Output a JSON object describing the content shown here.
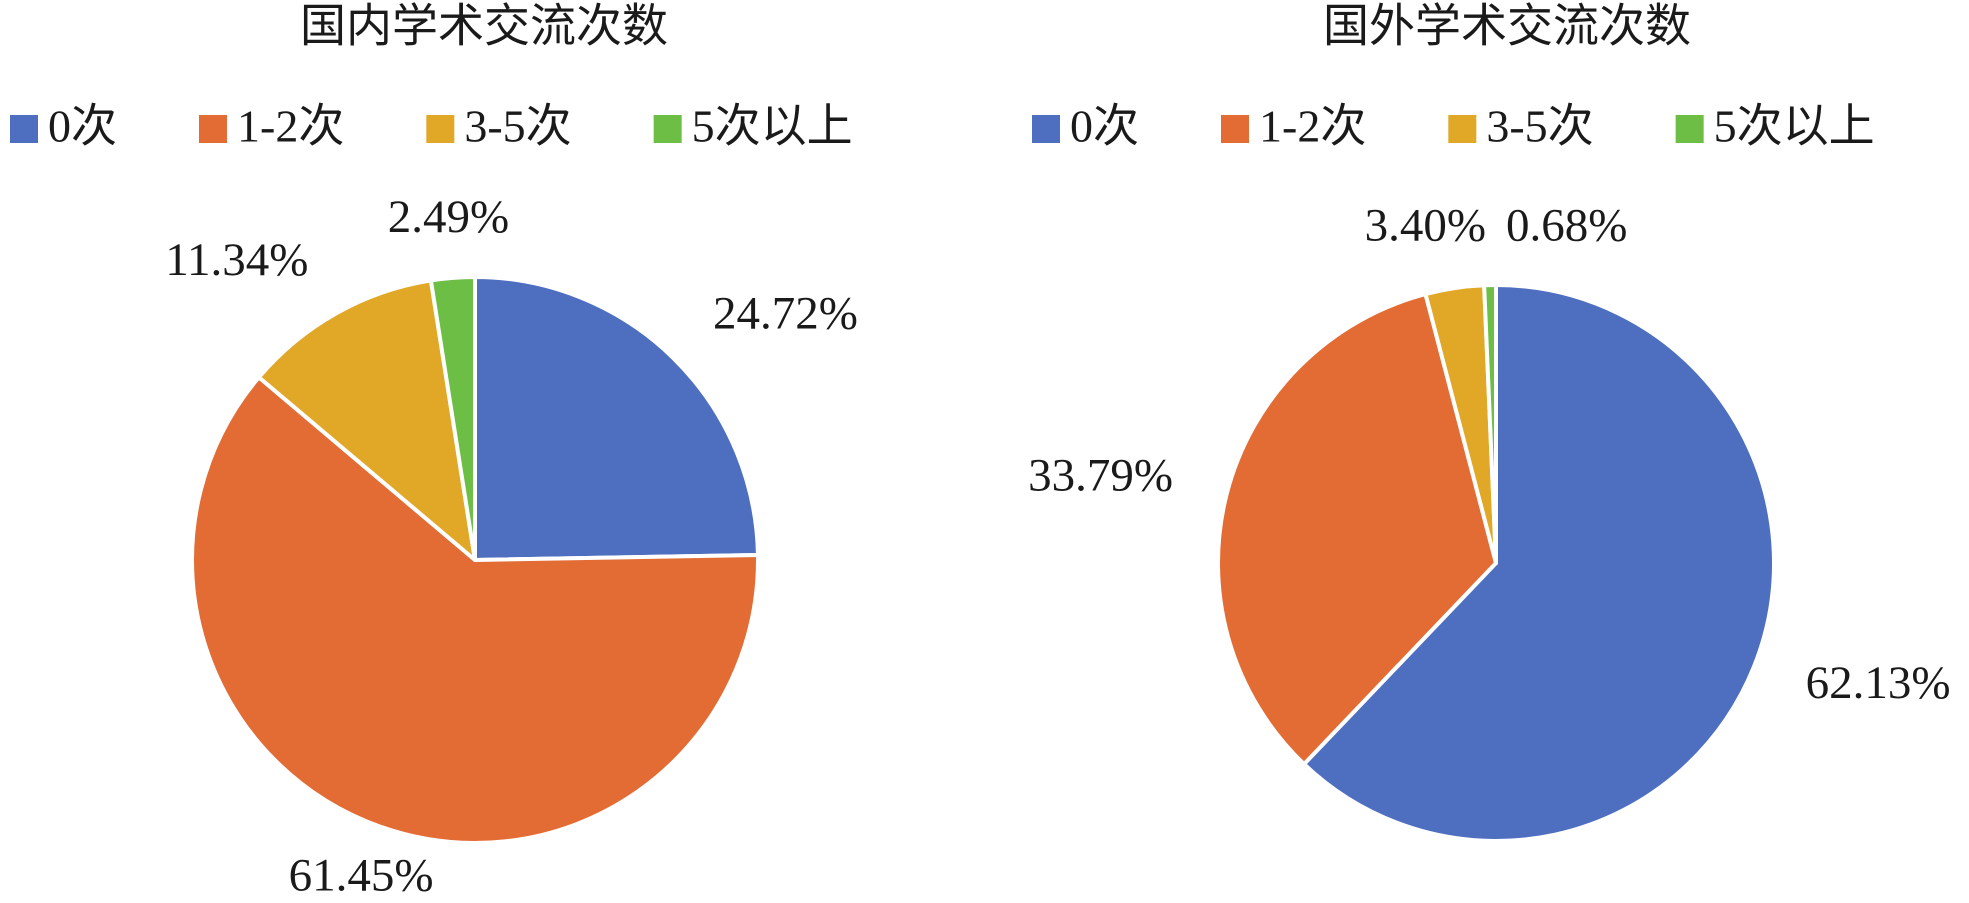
{
  "chart_data": [
    {
      "type": "pie",
      "title": "国内学术交流次数",
      "categories": [
        "0次",
        "1-2次",
        "3-5次",
        "5次以上"
      ],
      "values": [
        24.72,
        61.45,
        11.34,
        2.49
      ],
      "value_labels": [
        "24.72%",
        "61.45%",
        "11.34%",
        "2.49%"
      ],
      "colors": [
        "#4e6fc0",
        "#e36c35",
        "#e0a826",
        "#6cbf44"
      ]
    },
    {
      "type": "pie",
      "title": "国外学术交流次数",
      "categories": [
        "0次",
        "1-2次",
        "3-5次",
        "5次以上"
      ],
      "values": [
        62.13,
        33.79,
        3.4,
        0.68
      ],
      "value_labels": [
        "62.13%",
        "33.79%",
        "3.40%",
        "0.68%"
      ],
      "colors": [
        "#4e6fc0",
        "#e36c35",
        "#e0a826",
        "#6cbf44"
      ]
    }
  ]
}
